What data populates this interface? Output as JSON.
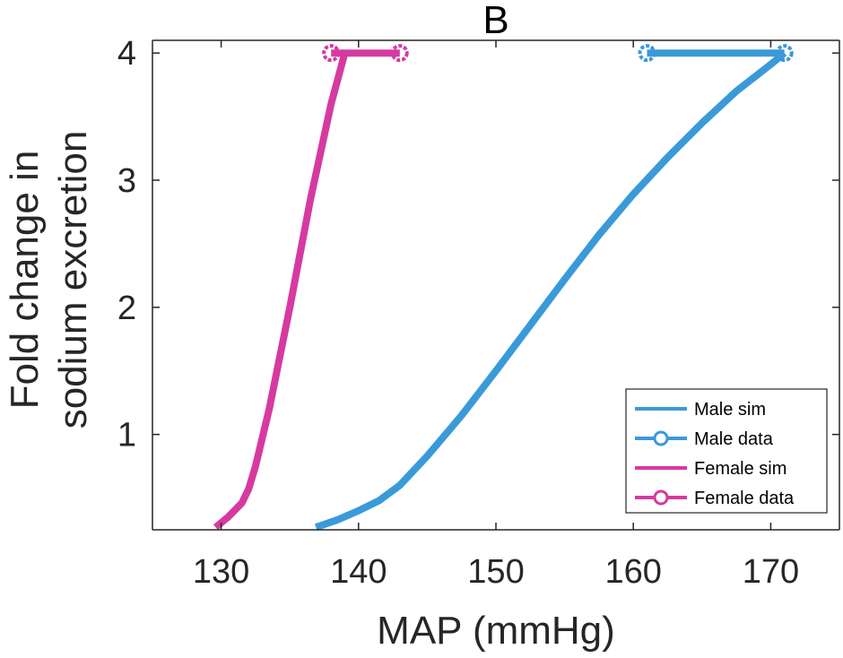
{
  "chart_data": {
    "type": "line",
    "title": "B",
    "xlabel": "MAP (mmHg)",
    "ylabel_lines": [
      "Fold change in",
      "sodium excretion"
    ],
    "xlim": [
      125,
      175
    ],
    "ylim": [
      0.25,
      4.1
    ],
    "xticks": [
      130,
      140,
      150,
      160,
      170
    ],
    "yticks": [
      1,
      2,
      3,
      4
    ],
    "grid": false,
    "legend_position": "bottom-right",
    "series": [
      {
        "name": "Male sim",
        "color": "#3a9ad9",
        "style": "line",
        "x": [
          136.9,
          138.5,
          140.0,
          141.5,
          143.0,
          145.0,
          147.5,
          150.0,
          152.5,
          155.0,
          157.5,
          160.0,
          162.5,
          165.0,
          167.5,
          170.0,
          171.0
        ],
        "y": [
          0.27,
          0.33,
          0.4,
          0.48,
          0.6,
          0.83,
          1.15,
          1.5,
          1.86,
          2.22,
          2.57,
          2.89,
          3.18,
          3.45,
          3.7,
          3.91,
          4.0
        ]
      },
      {
        "name": "Male data",
        "color": "#3a9ad9",
        "style": "line-marker",
        "x": [
          161.0,
          171.0
        ],
        "y": [
          4.0,
          4.0
        ]
      },
      {
        "name": "Female sim",
        "color": "#d63aa0",
        "style": "line",
        "x": [
          129.6,
          130.5,
          131.5,
          132.0,
          132.5,
          133.5,
          135.0,
          136.5,
          138.0,
          139.0
        ],
        "y": [
          0.27,
          0.35,
          0.46,
          0.57,
          0.75,
          1.2,
          2.0,
          2.85,
          3.6,
          4.0
        ]
      },
      {
        "name": "Female data",
        "color": "#d63aa0",
        "style": "line-marker",
        "x": [
          138.0,
          143.0
        ],
        "y": [
          4.0,
          4.0
        ]
      }
    ]
  }
}
